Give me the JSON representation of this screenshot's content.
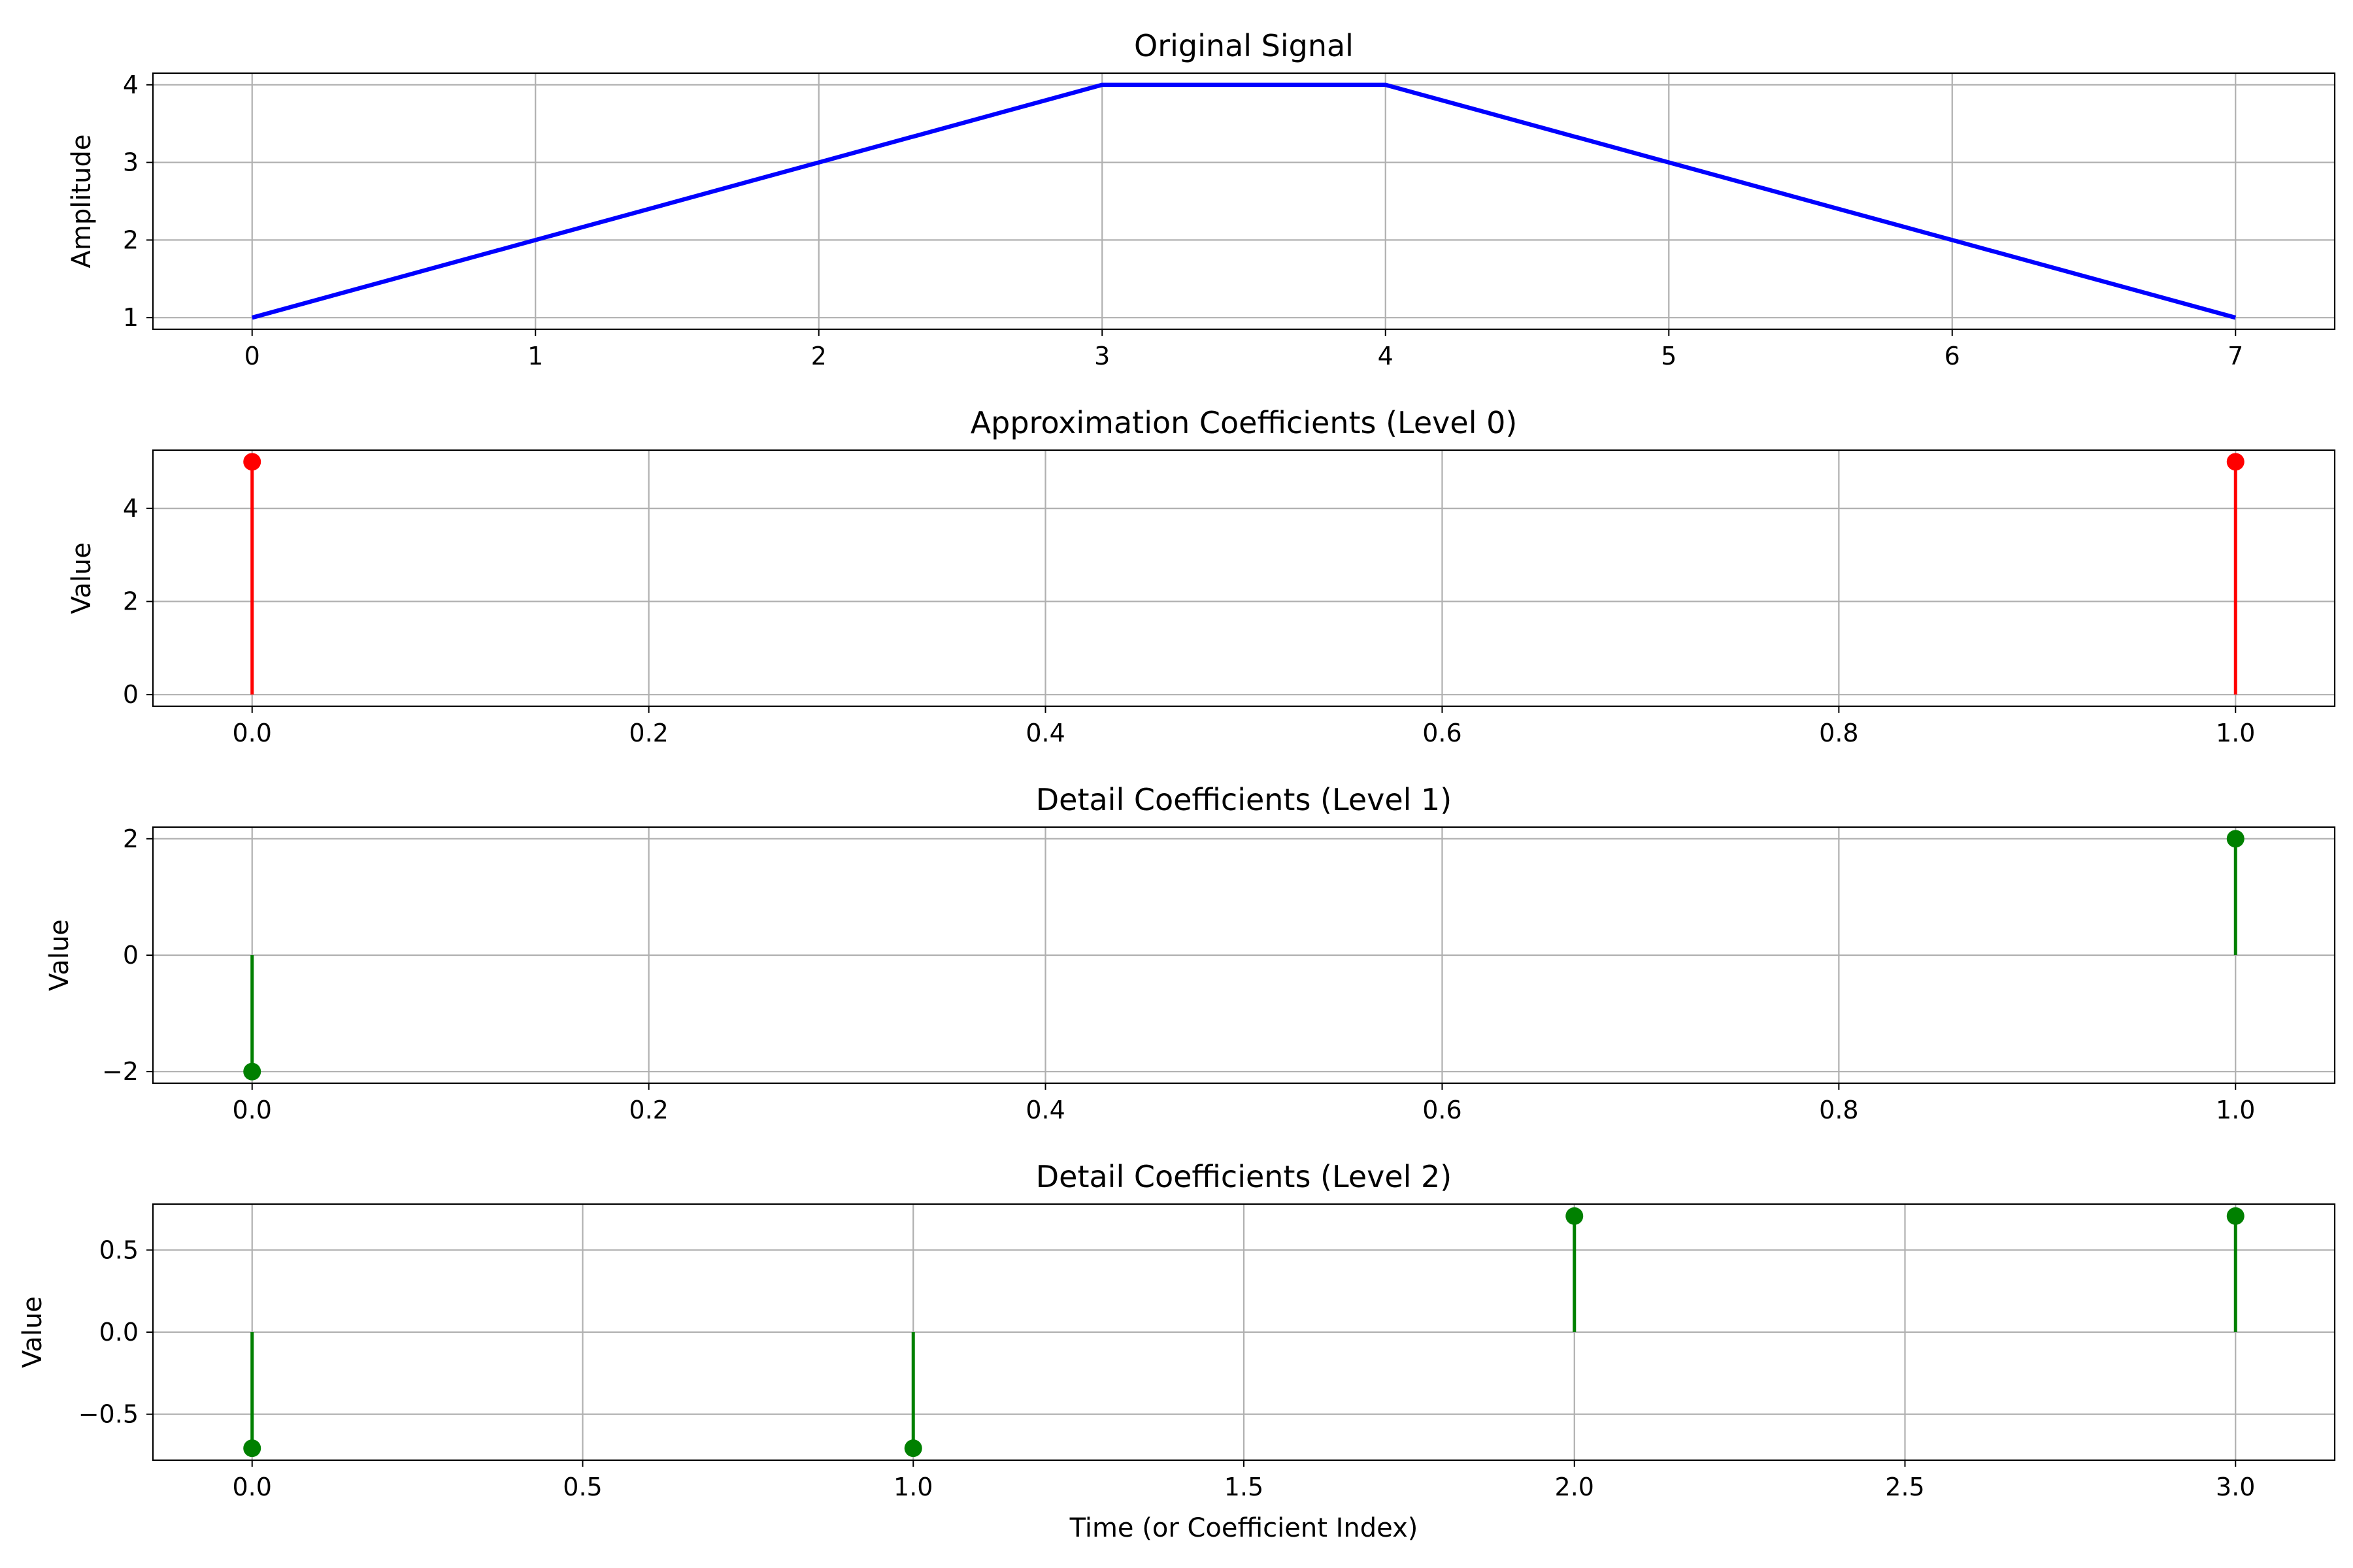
{
  "chart_data": [
    {
      "type": "line",
      "title": "Original Signal",
      "xlabel": "",
      "ylabel": "Amplitude",
      "x": [
        0,
        1,
        2,
        3,
        4,
        5,
        6,
        7
      ],
      "series": [
        {
          "values": [
            1,
            2,
            3,
            4,
            4,
            3,
            2,
            1
          ],
          "color": "#0000ff"
        }
      ],
      "xlim": [
        -0.35,
        7.35
      ],
      "ylim": [
        0.85,
        4.15
      ],
      "xticks": [
        0,
        1,
        2,
        3,
        4,
        5,
        6,
        7
      ],
      "xtick_labels": [
        "0",
        "1",
        "2",
        "3",
        "4",
        "5",
        "6",
        "7"
      ],
      "yticks": [
        1,
        2,
        3,
        4
      ],
      "ytick_labels": [
        "1",
        "2",
        "3",
        "4"
      ],
      "grid": true
    },
    {
      "type": "stem",
      "title": "Approximation Coefficients (Level 0)",
      "xlabel": "",
      "ylabel": "Value",
      "x": [
        0,
        1
      ],
      "series": [
        {
          "values": [
            5,
            5
          ],
          "color": "#ff0000"
        }
      ],
      "xlim": [
        -0.05,
        1.05
      ],
      "ylim": [
        -0.25,
        5.25
      ],
      "xticks": [
        0,
        0.2,
        0.4,
        0.6,
        0.8,
        1.0
      ],
      "xtick_labels": [
        "0.0",
        "0.2",
        "0.4",
        "0.6",
        "0.8",
        "1.0"
      ],
      "yticks": [
        0,
        2,
        4
      ],
      "ytick_labels": [
        "0",
        "2",
        "4"
      ],
      "grid": true
    },
    {
      "type": "stem",
      "title": "Detail Coefficients (Level 1)",
      "xlabel": "",
      "ylabel": "Value",
      "x": [
        0,
        1
      ],
      "series": [
        {
          "values": [
            -2,
            2
          ],
          "color": "#008000"
        }
      ],
      "xlim": [
        -0.05,
        1.05
      ],
      "ylim": [
        -2.2,
        2.2
      ],
      "xticks": [
        0,
        0.2,
        0.4,
        0.6,
        0.8,
        1.0
      ],
      "xtick_labels": [
        "0.0",
        "0.2",
        "0.4",
        "0.6",
        "0.8",
        "1.0"
      ],
      "yticks": [
        -2,
        0,
        2
      ],
      "ytick_labels": [
        "−2",
        "0",
        "2"
      ],
      "grid": true
    },
    {
      "type": "stem",
      "title": "Detail Coefficients (Level 2)",
      "xlabel": "Time (or Coefficient Index)",
      "ylabel": "Value",
      "x": [
        0,
        1,
        2,
        3
      ],
      "series": [
        {
          "values": [
            -0.7071,
            -0.7071,
            0.7071,
            0.7071
          ],
          "color": "#008000"
        }
      ],
      "xlim": [
        -0.15,
        3.15
      ],
      "ylim": [
        -0.78,
        0.78
      ],
      "xticks": [
        0,
        0.5,
        1.0,
        1.5,
        2.0,
        2.5,
        3.0
      ],
      "xtick_labels": [
        "0.0",
        "0.5",
        "1.0",
        "1.5",
        "2.0",
        "2.5",
        "3.0"
      ],
      "yticks": [
        -0.5,
        0,
        0.5
      ],
      "ytick_labels": [
        "−0.5",
        "0.0",
        "0.5"
      ],
      "grid": true
    }
  ]
}
